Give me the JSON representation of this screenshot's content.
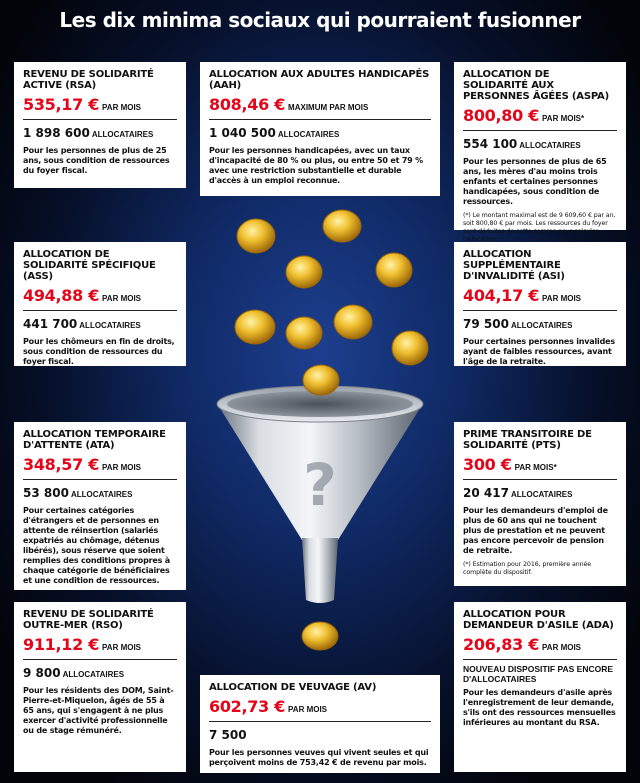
{
  "title": "Les dix minima sociaux qui pourraient fusionner",
  "cards": {
    "rsa": {
      "title": "Revenu de solidarité active (RSA)",
      "amount": "535,17 €",
      "period": "par mois",
      "recipients": "1 898 600",
      "recipients_label": "allocataires",
      "description": "Pour les personnes de plus de 25 ans, sous condition de ressources du foyer fiscal."
    },
    "aah": {
      "title": "Allocation aux adultes handicapés (AAH)",
      "amount": "808,46 €",
      "period": "maximum par mois",
      "recipients": "1 040 500",
      "recipients_label": "allocataires",
      "description": "Pour les personnes handicapées, avec un taux d'incapacité de 80 % ou plus, ou entre 50 et 79 % avec une restriction substantielle et durable d'accès à un emploi reconnue."
    },
    "aspa": {
      "title": "Allocation de solidarité aux personnes âgées (ASPA)",
      "amount": "800,80 €",
      "period": "par mois*",
      "recipients": "554 100",
      "recipients_label": "allocataires",
      "description": "Pour les personnes de plus de 65 ans, les mères d'au moins trois enfants et certaines personnes handicapées, sous condition de ressources.",
      "note": "(*) Le montant maximal est de 9 609,60 € par an, soit 800,80 € par mois. Les ressources du foyer sont déduites de cette somme pour calculer l'allocation."
    },
    "ass": {
      "title": "Allocation de solidarité spécifique (ASS)",
      "amount": "494,88 €",
      "period": "par mois",
      "recipients": "441 700",
      "recipients_label": "allocataires",
      "description": "Pour les chômeurs en fin de droits, sous condition de ressources du foyer fiscal."
    },
    "asi": {
      "title": "Allocation supplémentaire d'invalidité (ASI)",
      "amount": "404,17 €",
      "period": "par mois",
      "recipients": "79 500",
      "recipients_label": "allocataires",
      "description": "Pour certaines personnes invalides ayant de faibles ressources, avant l'âge de la retraite."
    },
    "ata": {
      "title": "Allocation temporaire d'attente (ATA)",
      "amount": "348,57 €",
      "period": "par mois",
      "recipients": "53 800",
      "recipients_label": "allocataires",
      "description": "Pour certaines catégories d'étrangers et de personnes en attente de réinsertion (salariés expatriés au chômage, détenus libérés), sous réserve que soient remplies des conditions propres à chaque catégorie de bénéficiaires et une condition de ressources."
    },
    "pts": {
      "title": "Prime transitoire de solidarité (PTS)",
      "amount": "300 €",
      "period": "par mois*",
      "recipients": "20 417",
      "recipients_label": "allocataires",
      "description": "Pour les demandeurs d'emploi de plus de 60 ans qui ne touchent plus de prestation et ne peuvent pas encore percevoir de pension de retraite.",
      "note": "(*) Estimation pour 2016, première année complète du dispositif."
    },
    "rso": {
      "title": "Revenu de solidarité outre-mer (RSO)",
      "amount": "911,12 €",
      "period": "par mois",
      "recipients": "9 800",
      "recipients_label": "allocataires",
      "description": "Pour les résidents des DOM, Saint-Pierre-et-Miquelon, âgés de 55 à 65 ans, qui s'engagent à ne plus exercer d'activité professionnelle ou de stage rémunéré."
    },
    "av": {
      "title": "Allocation de veuvage (AV)",
      "amount": "602,73 €",
      "period": "par mois",
      "recipients": "7 500",
      "recipients_label": "allocataires",
      "description": "Pour les personnes veuves qui vivent seules et qui perçoivent moins de 753,42 € de revenu par mois."
    },
    "ada": {
      "title": "Allocation pour demandeur d'asile (ADA)",
      "amount": "206,83 €",
      "period": "par mois",
      "status": "Nouveau dispositif pas encore d'allocataires",
      "description": "Pour les demandeurs d'asile après l'enregistrement de leur demande, s'ils ont des ressources mensuelles inférieures au montant du RSA."
    }
  },
  "illustration": {
    "funnel_mark": "?",
    "colors": {
      "coin": "#e8b21f",
      "amount": "#e3061b"
    }
  }
}
